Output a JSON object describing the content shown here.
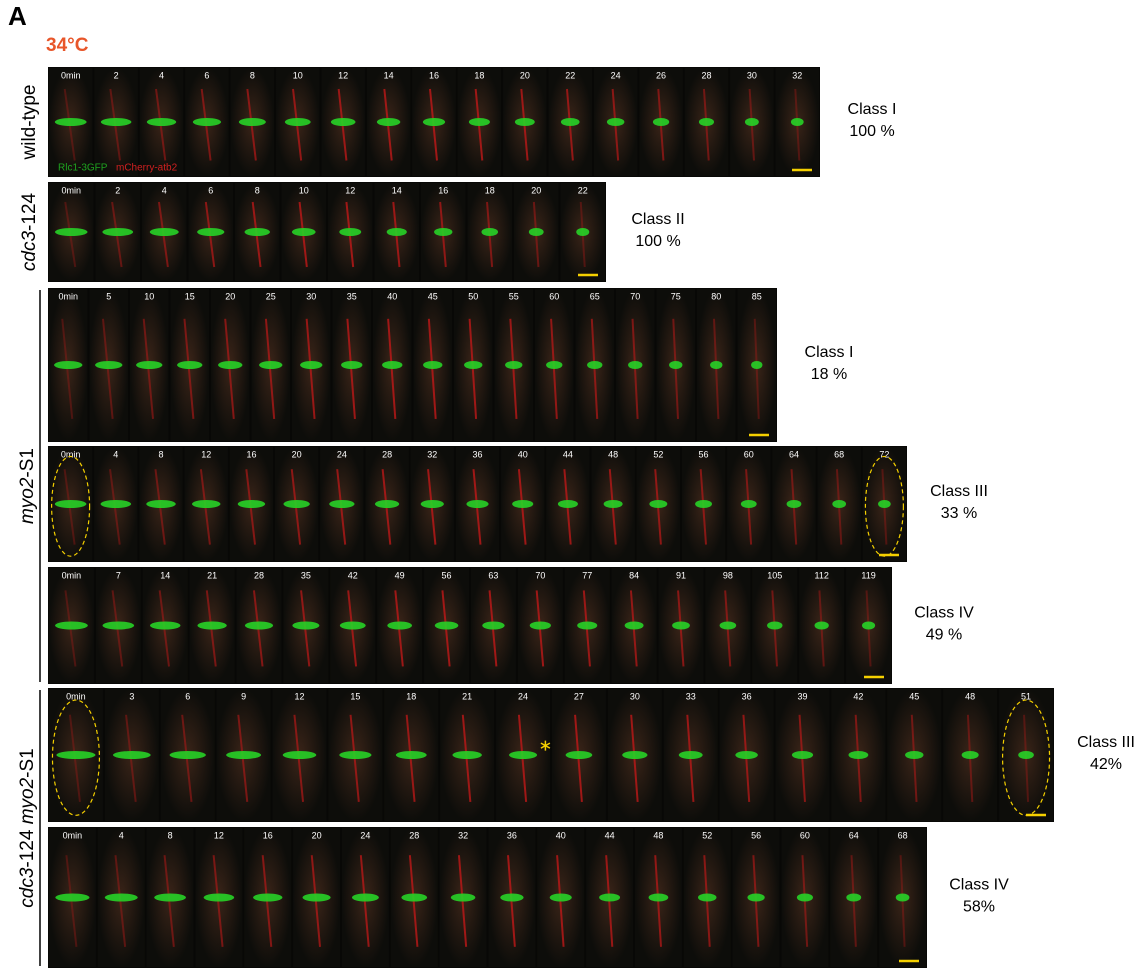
{
  "panel": "A",
  "temperature": "34°C",
  "legend": {
    "green": "Rlc1-3GFP",
    "red": "mCherry-atb2"
  },
  "genotypes": [
    {
      "parts": [
        {
          "text": "wild-type",
          "italic": false
        }
      ]
    },
    {
      "parts": [
        {
          "text": "cdc3",
          "italic": true
        },
        {
          "text": "-124",
          "italic": false
        }
      ]
    },
    {
      "parts": [
        {
          "text": "myo2",
          "italic": true
        },
        {
          "text": "-S1",
          "italic": false
        }
      ]
    },
    {
      "parts": [
        {
          "text": "cdc3",
          "italic": true
        },
        {
          "text": "-124 ",
          "italic": false
        },
        {
          "text": "myo2",
          "italic": true
        },
        {
          "text": "-S1",
          "italic": false
        }
      ]
    }
  ],
  "strips": [
    {
      "times": [
        "0min",
        "2",
        "4",
        "6",
        "8",
        "10",
        "12",
        "14",
        "16",
        "18",
        "20",
        "22",
        "24",
        "26",
        "28",
        "30",
        "32"
      ],
      "class": "Class I",
      "percent": "100 %"
    },
    {
      "times": [
        "0min",
        "2",
        "4",
        "6",
        "8",
        "10",
        "12",
        "14",
        "16",
        "18",
        "20",
        "22"
      ],
      "class": "Class II",
      "percent": "100 %"
    },
    {
      "times": [
        "0min",
        "5",
        "10",
        "15",
        "20",
        "25",
        "30",
        "35",
        "40",
        "45",
        "50",
        "55",
        "60",
        "65",
        "70",
        "75",
        "80",
        "85"
      ],
      "class": "Class I",
      "percent": "18 %"
    },
    {
      "times": [
        "0min",
        "4",
        "8",
        "12",
        "16",
        "20",
        "24",
        "28",
        "32",
        "36",
        "40",
        "44",
        "48",
        "52",
        "56",
        "60",
        "64",
        "68",
        "72"
      ],
      "class": "Class III",
      "percent": "33 %"
    },
    {
      "times": [
        "0min",
        "7",
        "14",
        "21",
        "28",
        "35",
        "42",
        "49",
        "56",
        "63",
        "70",
        "77",
        "84",
        "91",
        "98",
        "105",
        "112",
        "119"
      ],
      "class": "Class IV",
      "percent": "49 %"
    },
    {
      "times": [
        "0min",
        "3",
        "6",
        "9",
        "12",
        "15",
        "18",
        "21",
        "24",
        "27",
        "30",
        "33",
        "36",
        "39",
        "42",
        "45",
        "48",
        "51"
      ],
      "class": "Class III",
      "percent": "42%"
    },
    {
      "times": [
        "0min",
        "4",
        "8",
        "12",
        "16",
        "20",
        "24",
        "28",
        "32",
        "36",
        "40",
        "44",
        "48",
        "52",
        "56",
        "60",
        "64",
        "68"
      ],
      "class": "Class IV",
      "percent": "58%"
    }
  ]
}
